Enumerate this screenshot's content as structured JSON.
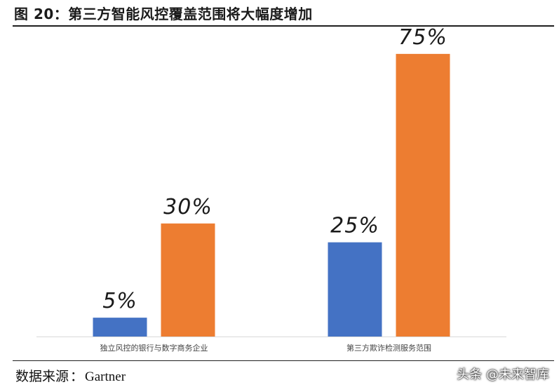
{
  "figure": {
    "title": "图 20：第三方智能风控覆盖范围将大幅度增加",
    "source_label": "数据来源",
    "source_colon": "：",
    "source_value": "Gartner",
    "watermark": "头条 @未来智库"
  },
  "chart_data": {
    "type": "bar",
    "categories": [
      "独立风控的银行与数字商务企业",
      "第三方欺诈检测服务范围"
    ],
    "series": [
      {
        "values": [
          5,
          25
        ],
        "color": "#4472C4"
      },
      {
        "values": [
          30,
          75
        ],
        "color": "#ED7D31"
      }
    ],
    "data_labels": [
      [
        "5%",
        "25%"
      ],
      [
        "30%",
        "75%"
      ]
    ],
    "ylim": [
      0,
      80
    ],
    "grid": false,
    "legend": "none"
  }
}
